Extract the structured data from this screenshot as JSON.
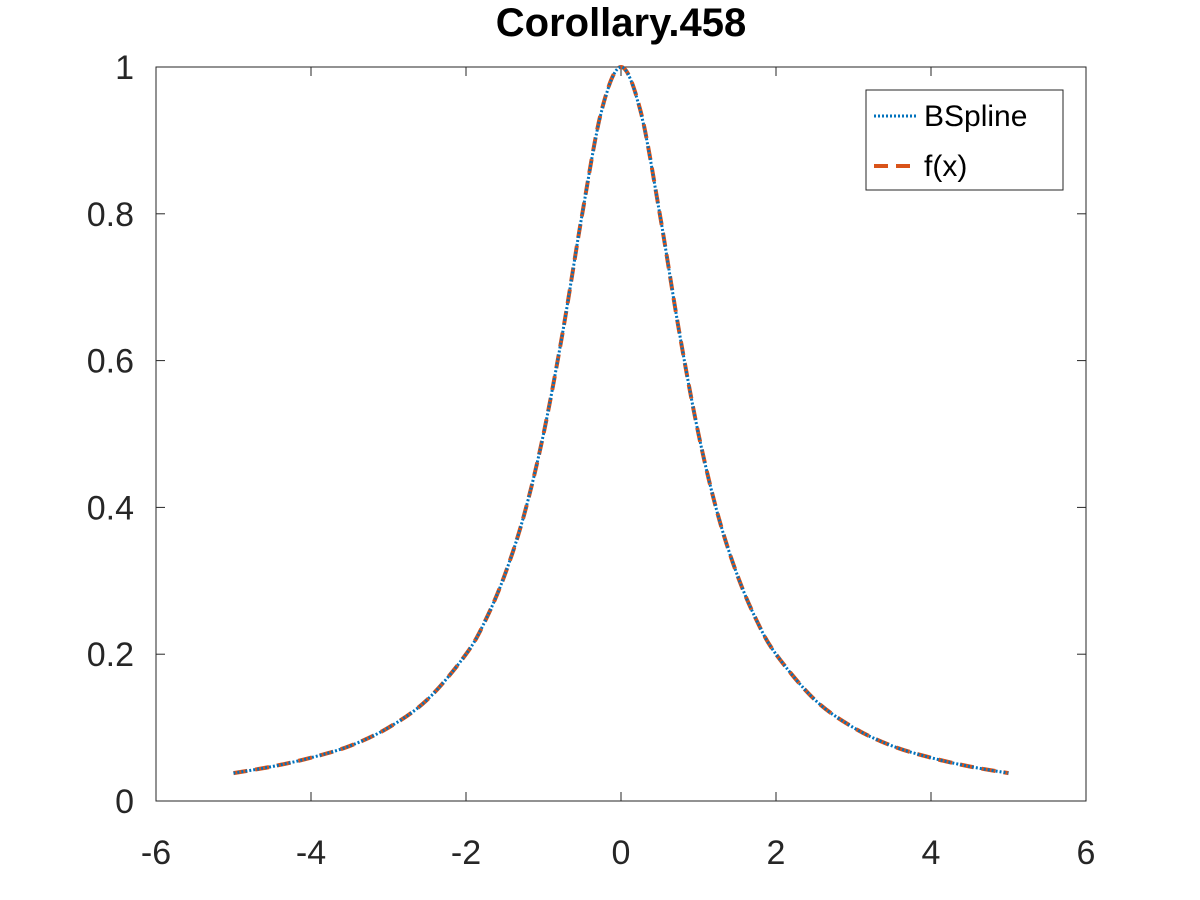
{
  "chart_data": {
    "type": "line",
    "title": "Corollary.458",
    "xlabel": "",
    "ylabel": "",
    "xlim": [
      -6,
      6
    ],
    "ylim": [
      0,
      1
    ],
    "xticks": [
      -6,
      -4,
      -2,
      0,
      2,
      4,
      6
    ],
    "yticks": [
      0,
      0.2,
      0.4,
      0.6,
      0.8,
      1
    ],
    "xtick_labels": [
      "-6",
      "-4",
      "-2",
      "0",
      "2",
      "4",
      "6"
    ],
    "ytick_labels": [
      "0",
      "0.2",
      "0.4",
      "0.6",
      "0.8",
      "1"
    ],
    "grid": false,
    "legend_position": "top-right",
    "x": [
      -5,
      -4.5,
      -4,
      -3.5,
      -3,
      -2.5,
      -2,
      -1.75,
      -1.5,
      -1.25,
      -1,
      -0.75,
      -0.5,
      -0.25,
      0,
      0.25,
      0.5,
      0.75,
      1,
      1.25,
      1.5,
      1.75,
      2,
      2.5,
      3,
      3.5,
      4,
      4.5,
      5
    ],
    "series": [
      {
        "name": "BSpline",
        "color": "#0072BD",
        "style": "dotted",
        "values": [
          0.038,
          0.047,
          0.059,
          0.075,
          0.1,
          0.138,
          0.2,
          0.246,
          0.308,
          0.39,
          0.5,
          0.64,
          0.8,
          0.94,
          1,
          0.94,
          0.8,
          0.64,
          0.5,
          0.39,
          0.308,
          0.246,
          0.2,
          0.138,
          0.1,
          0.075,
          0.059,
          0.047,
          0.038
        ]
      },
      {
        "name": "f(x)",
        "color": "#D95319",
        "style": "dashed",
        "values": [
          0.038,
          0.047,
          0.059,
          0.075,
          0.1,
          0.138,
          0.2,
          0.246,
          0.308,
          0.39,
          0.5,
          0.64,
          0.8,
          0.941,
          1,
          0.941,
          0.8,
          0.64,
          0.5,
          0.39,
          0.308,
          0.246,
          0.2,
          0.138,
          0.1,
          0.075,
          0.059,
          0.047,
          0.038
        ]
      }
    ]
  }
}
